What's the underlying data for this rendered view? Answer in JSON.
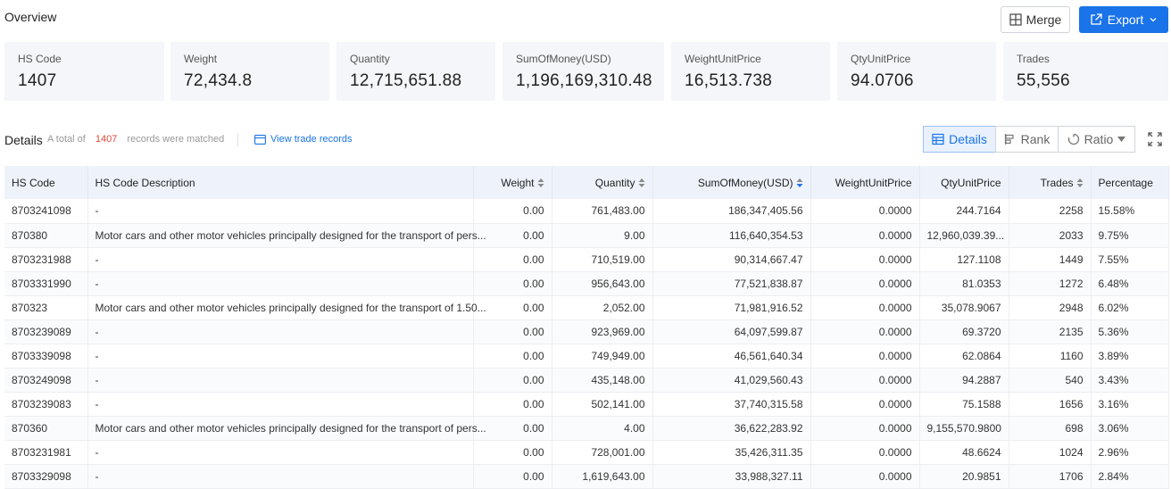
{
  "overview": {
    "title": "Overview",
    "merge_label": "Merge",
    "export_label": "Export"
  },
  "stats": [
    {
      "label": "HS Code",
      "value": "1407"
    },
    {
      "label": "Weight",
      "value": "72,434.8"
    },
    {
      "label": "Quantity",
      "value": "12,715,651.88"
    },
    {
      "label": "SumOfMoney(USD)",
      "value": "1,196,169,310.48"
    },
    {
      "label": "WeightUnitPrice",
      "value": "16,513.738"
    },
    {
      "label": "QtyUnitPrice",
      "value": "94.0706"
    },
    {
      "label": "Trades",
      "value": "55,556"
    }
  ],
  "details": {
    "title": "Details",
    "sub_prefix": "A total of",
    "count": "1407",
    "sub_suffix": "records were matched",
    "view_link": "View trade records",
    "tabs": [
      "Details",
      "Rank",
      "Ratio"
    ]
  },
  "colors": {
    "accent": "#1a73e8",
    "count": "#e0483a",
    "header_bg": "#eef3fb"
  },
  "table": {
    "headers": [
      "HS Code",
      "HS Code Description",
      "Weight",
      "Quantity",
      "SumOfMoney(USD)",
      "WeightUnitPrice",
      "QtyUnitPrice",
      "Trades",
      "Percentage"
    ],
    "rows": [
      [
        "8703241098",
        "-",
        "0.00",
        "761,483.00",
        "186,347,405.56",
        "0.0000",
        "244.7164",
        "2258",
        "15.58%"
      ],
      [
        "870380",
        "Motor cars and other motor vehicles principally designed for the transport of pers...",
        "0.00",
        "9.00",
        "116,640,354.53",
        "0.0000",
        "12,960,039.39...",
        "2033",
        "9.75%"
      ],
      [
        "8703231988",
        "-",
        "0.00",
        "710,519.00",
        "90,314,667.47",
        "0.0000",
        "127.1108",
        "1449",
        "7.55%"
      ],
      [
        "8703331990",
        "-",
        "0.00",
        "956,643.00",
        "77,521,838.87",
        "0.0000",
        "81.0353",
        "1272",
        "6.48%"
      ],
      [
        "870323",
        "Motor cars and other motor vehicles principally designed for the transport of 1.50...",
        "0.00",
        "2,052.00",
        "71,981,916.52",
        "0.0000",
        "35,078.9067",
        "2948",
        "6.02%"
      ],
      [
        "8703239089",
        "-",
        "0.00",
        "923,969.00",
        "64,097,599.87",
        "0.0000",
        "69.3720",
        "2135",
        "5.36%"
      ],
      [
        "8703339098",
        "-",
        "0.00",
        "749,949.00",
        "46,561,640.34",
        "0.0000",
        "62.0864",
        "1160",
        "3.89%"
      ],
      [
        "8703249098",
        "-",
        "0.00",
        "435,148.00",
        "41,029,560.43",
        "0.0000",
        "94.2887",
        "540",
        "3.43%"
      ],
      [
        "8703239083",
        "-",
        "0.00",
        "502,141.00",
        "37,740,315.58",
        "0.0000",
        "75.1588",
        "1656",
        "3.16%"
      ],
      [
        "870360",
        "Motor cars and other motor vehicles principally designed for the transport of pers...",
        "0.00",
        "4.00",
        "36,622,283.92",
        "0.0000",
        "9,155,570.9800",
        "698",
        "3.06%"
      ],
      [
        "8703231981",
        "-",
        "0.00",
        "728,001.00",
        "35,426,311.35",
        "0.0000",
        "48.6624",
        "1024",
        "2.96%"
      ],
      [
        "8703329098",
        "-",
        "0.00",
        "1,619,643.00",
        "33,988,327.11",
        "0.0000",
        "20.9851",
        "1706",
        "2.84%"
      ]
    ]
  }
}
